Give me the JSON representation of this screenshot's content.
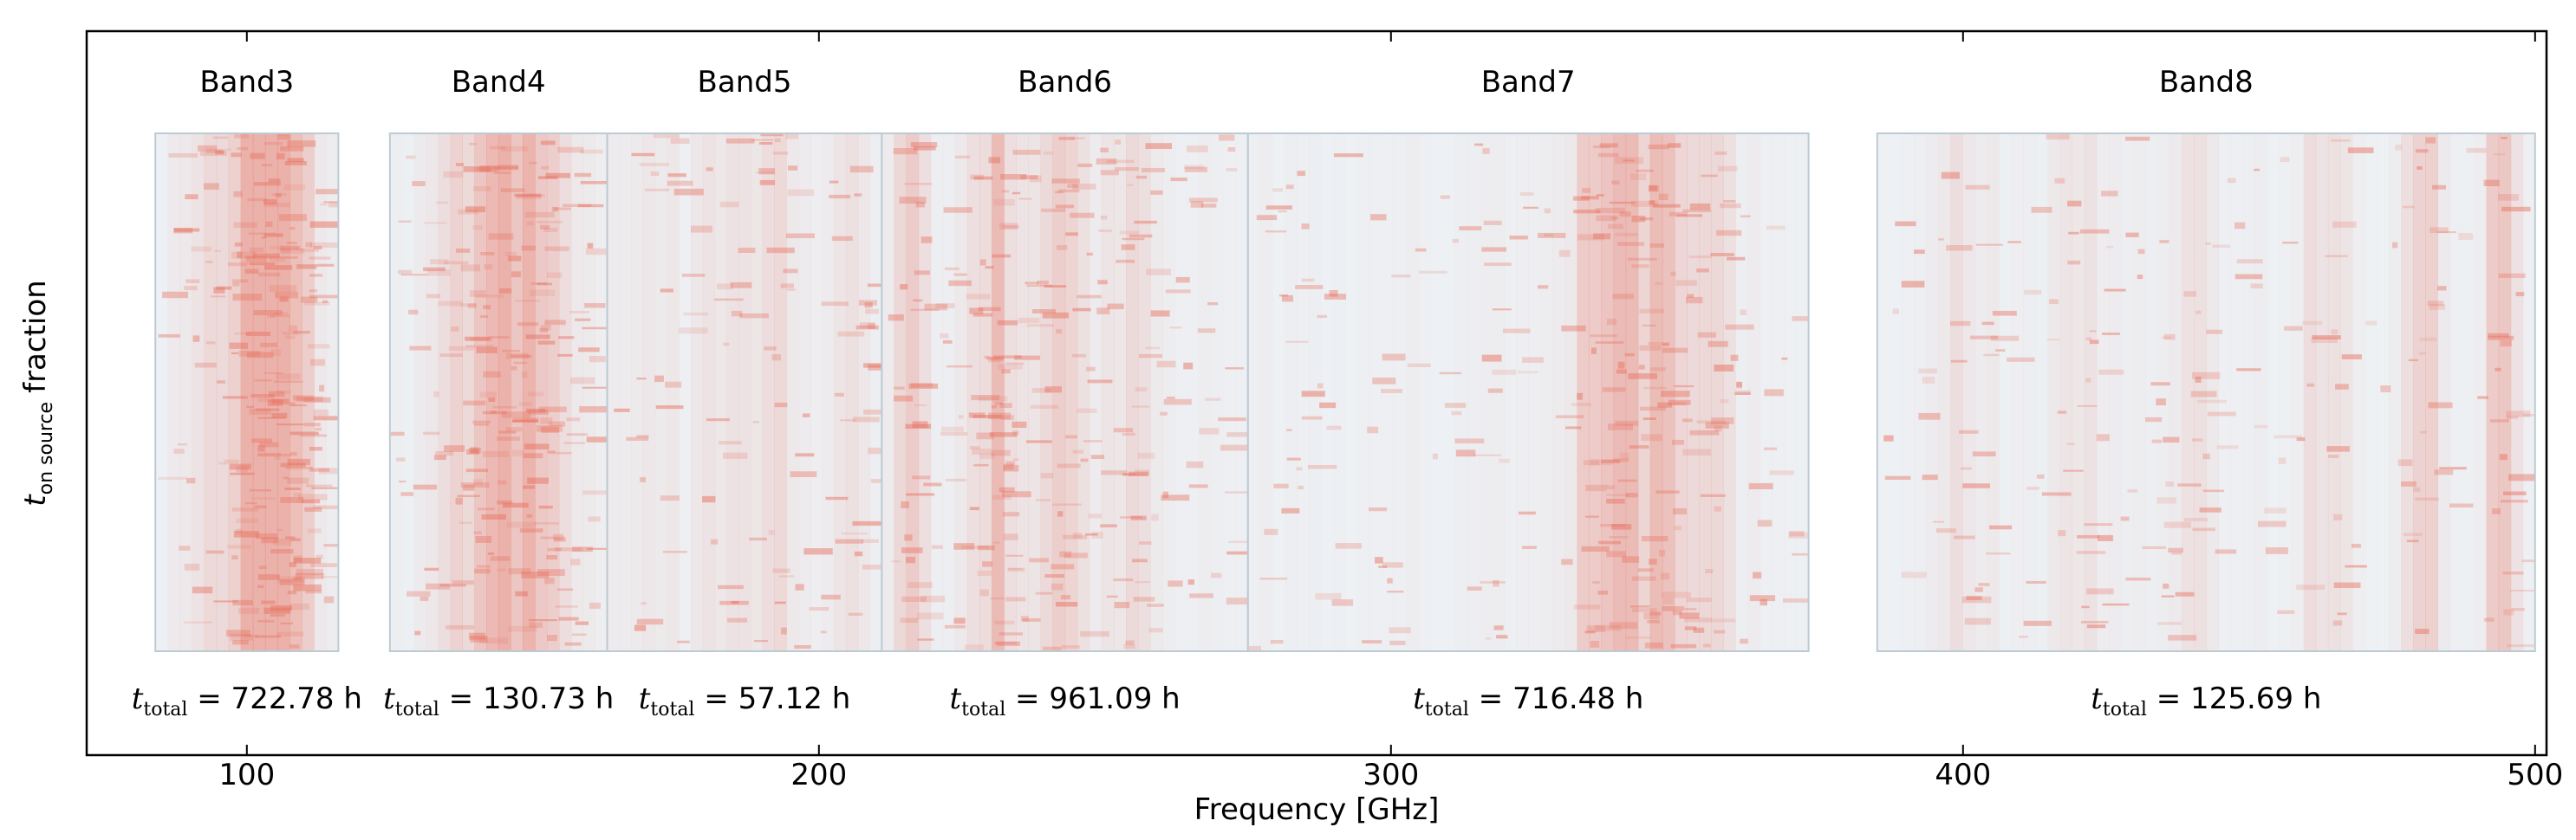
{
  "chart_data": {
    "type": "heatmap",
    "title": "",
    "xlabel": "Frequency [GHz]",
    "ylabel": {
      "base": "t",
      "subscript": "on source",
      "suffix": "fraction"
    },
    "xlim": [
      72,
      502
    ],
    "xticks": [
      100,
      200,
      300,
      400,
      500
    ],
    "grid": false,
    "legend": "none",
    "colors": {
      "heat": "#e8705e",
      "background": "#eef5f9",
      "panel_edge": "#bccbd3",
      "axis": "#000000"
    },
    "bands": [
      {
        "name": "Band3",
        "range": [
          84,
          116
        ],
        "t_total_value": "722.78 h",
        "intensity": 0.75,
        "profile": [
          [
            92,
            2.5,
            0.35
          ],
          [
            100,
            3,
            0.5
          ],
          [
            103,
            4,
            0.85
          ],
          [
            108,
            3,
            0.6
          ]
        ]
      },
      {
        "name": "Band4",
        "range": [
          125,
          163
        ],
        "t_total_value": "130.73 h",
        "intensity": 0.6,
        "profile": [
          [
            140,
            4,
            0.6
          ],
          [
            146,
            4,
            0.7
          ],
          [
            152,
            4,
            0.5
          ]
        ]
      },
      {
        "name": "Band5",
        "range": [
          163,
          211
        ],
        "t_total_value": "57.12 h",
        "intensity": 0.35,
        "profile": [
          [
            170,
            3,
            0.3
          ],
          [
            183,
            3,
            0.35
          ],
          [
            192,
            3,
            0.4
          ],
          [
            205,
            3,
            0.35
          ]
        ]
      },
      {
        "name": "Band6",
        "range": [
          211,
          275
        ],
        "t_total_value": "961.09 h",
        "intensity": 0.6,
        "profile": [
          [
            216,
            2,
            0.65
          ],
          [
            231,
            3,
            0.85
          ],
          [
            243,
            3,
            0.55
          ],
          [
            254,
            3,
            0.35
          ]
        ]
      },
      {
        "name": "Band7",
        "range": [
          275,
          373
        ],
        "t_total_value": "716.48 h",
        "intensity": 0.45,
        "profile": [
          [
            336,
            3,
            0.75
          ],
          [
            344,
            4,
            0.8
          ],
          [
            350,
            3,
            0.6
          ],
          [
            356,
            3,
            0.45
          ]
        ]
      },
      {
        "name": "Band8",
        "range": [
          385,
          500
        ],
        "t_total_value": "125.69 h",
        "intensity": 0.35,
        "profile": [
          [
            400,
            3,
            0.3
          ],
          [
            420,
            3,
            0.3
          ],
          [
            440,
            3,
            0.25
          ],
          [
            463,
            3,
            0.35
          ],
          [
            480,
            2,
            0.8
          ],
          [
            494,
            2,
            0.7
          ]
        ]
      }
    ]
  }
}
